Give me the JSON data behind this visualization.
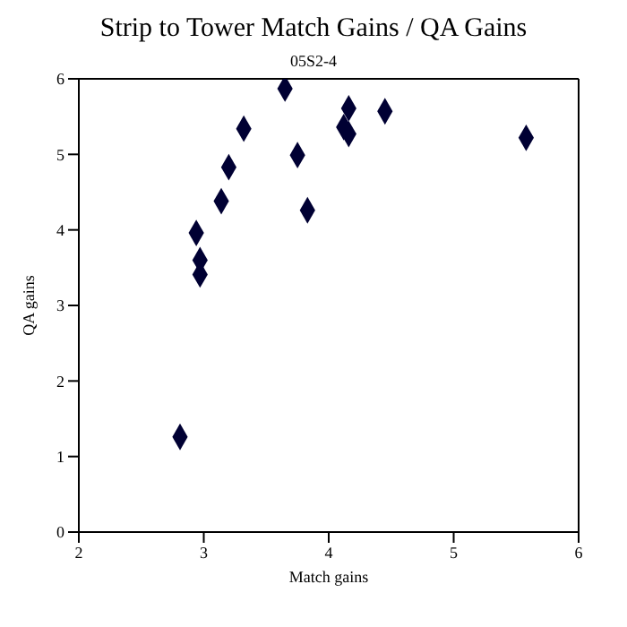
{
  "chart_data": {
    "type": "scatter",
    "title": "Strip to Tower Match Gains / QA Gains",
    "subtitle": "05S2-4",
    "xlabel": "Match gains",
    "ylabel": "QA gains",
    "x": [
      2.81,
      2.94,
      2.97,
      2.97,
      3.14,
      3.2,
      3.32,
      3.65,
      3.75,
      3.83,
      4.12,
      4.16,
      4.16,
      4.45,
      5.58
    ],
    "values": [
      1.26,
      3.96,
      3.6,
      3.41,
      4.38,
      4.83,
      5.34,
      5.87,
      4.99,
      4.26,
      5.36,
      5.61,
      5.27,
      5.57,
      5.22
    ],
    "color": "#000033",
    "marker": "diamond",
    "xlim": [
      2,
      6
    ],
    "xticks": [
      2,
      3,
      4,
      5,
      6
    ],
    "ylim": [
      0,
      6
    ],
    "yticks": [
      0,
      1,
      2,
      3,
      4,
      5,
      6
    ],
    "grid": false,
    "legend": false
  }
}
